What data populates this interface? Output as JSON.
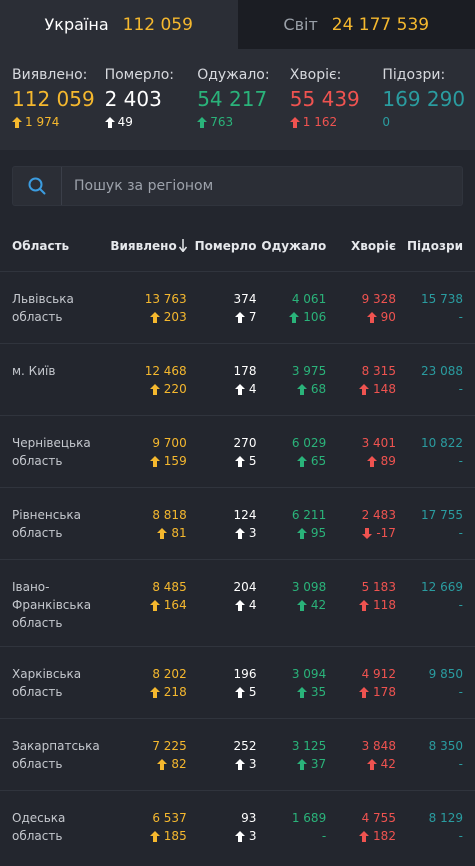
{
  "tabs": [
    {
      "label": "Україна",
      "count": "112 059"
    },
    {
      "label": "Світ",
      "count": "24 177 539"
    }
  ],
  "summary": {
    "detected": {
      "label": "Виявлено:",
      "value": "112 059",
      "delta": "1 974"
    },
    "died": {
      "label": "Померло:",
      "value": "2 403",
      "delta": "49"
    },
    "recovered": {
      "label": "Одужало:",
      "value": "54 217",
      "delta": "763"
    },
    "sick": {
      "label": "Хворіє:",
      "value": "55 439",
      "delta": "1 162"
    },
    "suspected": {
      "label": "Підозри:",
      "value": "169 290",
      "delta": "0"
    }
  },
  "search": {
    "placeholder": "Пошук за регіоном"
  },
  "table": {
    "headers": {
      "region": "Область",
      "detected": "Виявлено",
      "died": "Померло",
      "recovered": "Одужало",
      "sick": "Хворіє",
      "suspected": "Підозри"
    },
    "rows": [
      {
        "region": "Львівська область",
        "detected": "13 763",
        "detected_d": "203",
        "died": "374",
        "died_d": "7",
        "recovered": "4 061",
        "recovered_d": "106",
        "sick": "9 328",
        "sick_d": "90",
        "sick_dir": "up",
        "suspected": "15 738",
        "suspected_d": "-"
      },
      {
        "region": "м. Київ",
        "detected": "12 468",
        "detected_d": "220",
        "died": "178",
        "died_d": "4",
        "recovered": "3 975",
        "recovered_d": "68",
        "sick": "8 315",
        "sick_d": "148",
        "sick_dir": "up",
        "suspected": "23 088",
        "suspected_d": "-"
      },
      {
        "region": "Чернівецька область",
        "detected": "9 700",
        "detected_d": "159",
        "died": "270",
        "died_d": "5",
        "recovered": "6 029",
        "recovered_d": "65",
        "sick": "3 401",
        "sick_d": "89",
        "sick_dir": "up",
        "suspected": "10 822",
        "suspected_d": "-"
      },
      {
        "region": "Рівненська область",
        "detected": "8 818",
        "detected_d": "81",
        "died": "124",
        "died_d": "3",
        "recovered": "6 211",
        "recovered_d": "95",
        "sick": "2 483",
        "sick_d": "-17",
        "sick_dir": "down",
        "suspected": "17 755",
        "suspected_d": "-"
      },
      {
        "region": "Івано-Франківська область",
        "detected": "8 485",
        "detected_d": "164",
        "died": "204",
        "died_d": "4",
        "recovered": "3 098",
        "recovered_d": "42",
        "sick": "5 183",
        "sick_d": "118",
        "sick_dir": "up",
        "suspected": "12 669",
        "suspected_d": "-"
      },
      {
        "region": "Харківська область",
        "detected": "8 202",
        "detected_d": "218",
        "died": "196",
        "died_d": "5",
        "recovered": "3 094",
        "recovered_d": "35",
        "sick": "4 912",
        "sick_d": "178",
        "sick_dir": "up",
        "suspected": "9 850",
        "suspected_d": "-"
      },
      {
        "region": "Закарпатська область",
        "detected": "7 225",
        "detected_d": "82",
        "died": "252",
        "died_d": "3",
        "recovered": "3 125",
        "recovered_d": "37",
        "sick": "3 848",
        "sick_d": "42",
        "sick_dir": "up",
        "suspected": "8 350",
        "suspected_d": "-"
      },
      {
        "region": "Одеська область",
        "detected": "6 537",
        "detected_d": "185",
        "died": "93",
        "died_d": "3",
        "recovered": "1 689",
        "recovered_d": "-",
        "sick": "4 755",
        "sick_d": "182",
        "sick_dir": "up",
        "suspected": "8 129",
        "suspected_d": "-"
      }
    ]
  },
  "colors": {
    "detected": "#f5b82e",
    "died": "#ffffff",
    "recovered": "#2ab37a",
    "sick": "#ef5350",
    "suspected": "#2a9ca0",
    "background": "#23262e"
  }
}
